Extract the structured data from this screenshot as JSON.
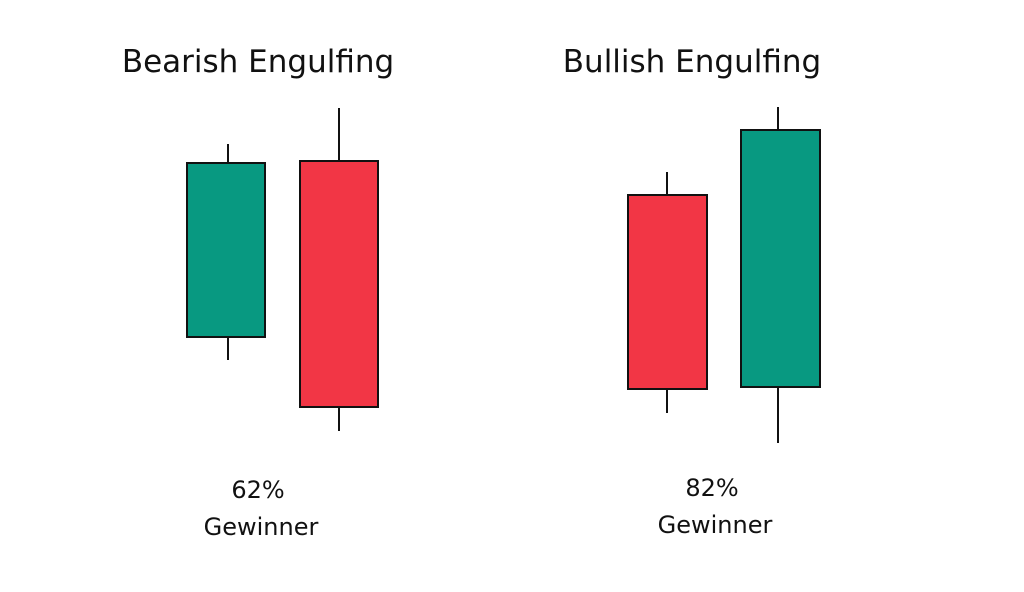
{
  "panels": [
    {
      "title": "Bearish Engulfing",
      "win_rate": "62%",
      "caption": "Gewinner"
    },
    {
      "title": "Bullish Engulfing",
      "win_rate": "82%",
      "caption": "Gewinner"
    }
  ]
}
